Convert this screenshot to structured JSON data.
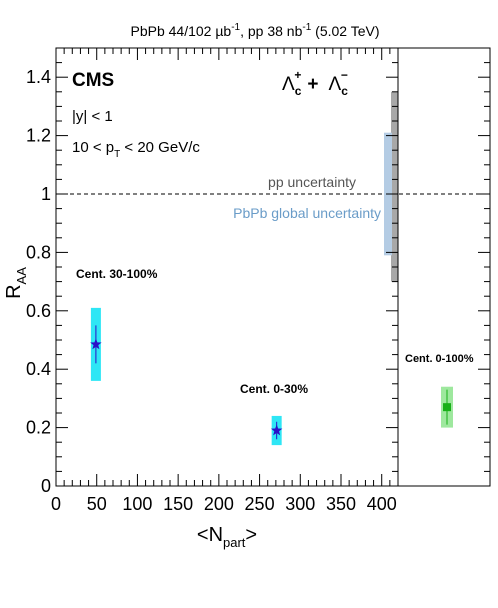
{
  "header": {
    "lumi_pre": "PbPb 44/102 µb",
    "lumi_sup1": "-1",
    "lumi_mid": ", pp 38 nb",
    "lumi_sup2": "-1",
    "lumi_post": " (5.02 TeV)"
  },
  "labels": {
    "cms": "CMS",
    "rapidity": "|y| < 1",
    "pt_pre": "10 < p",
    "pt_sub": "T",
    "pt_post": " < 20 GeV/c",
    "species_a": "Λ",
    "species_a_sub": "c",
    "species_a_sup": "+",
    "species_plus": "+",
    "species_b": "Λ",
    "species_b_sub": "c",
    "species_b_sup": "−",
    "pp_unc": "pp uncertainty",
    "pbpb_unc": "PbPb global uncertainty",
    "cent_30_100": "Cent. 30-100%",
    "cent_0_30": "Cent. 0-30%",
    "cent_0_100": "Cent. 0-100%",
    "ylabel_main": "R",
    "ylabel_sub": "AA",
    "xlabel_pre": "<N",
    "xlabel_sub": "part",
    "xlabel_post": ">"
  },
  "colors": {
    "central_marker": "#2a10c8",
    "central_box": "#2ee6f5",
    "inclusive_marker": "#18b018",
    "inclusive_box": "#9ee89e",
    "pp_band": "#a8a8a8",
    "pbpb_band": "#b4cce4",
    "pbpb_text": "#6a9cc8",
    "pp_text": "#555555"
  },
  "chart_data": {
    "type": "scatter",
    "xlim": [
      0,
      420
    ],
    "ylim": [
      0,
      1.5
    ],
    "x_ticks": [
      "0",
      "50",
      "100",
      "150",
      "200",
      "250",
      "300",
      "350",
      "400"
    ],
    "y_ticks": [
      "0",
      "0.2",
      "0.4",
      "0.6",
      "0.8",
      "1",
      "1.2",
      "1.4"
    ],
    "reference_line": 1.0,
    "series": [
      {
        "points": [
          {
            "x": 49,
            "y": 0.485,
            "stat_lo": 0.42,
            "stat_hi": 0.55,
            "syst_lo": 0.36,
            "syst_hi": 0.61
          },
          {
            "x": 271,
            "y": 0.19,
            "stat_lo": 0.16,
            "stat_hi": 0.22,
            "syst_lo": 0.14,
            "syst_hi": 0.24
          }
        ]
      }
    ],
    "inclusive": {
      "y": 0.27,
      "stat_lo": 0.21,
      "stat_hi": 0.33,
      "syst_lo": 0.2,
      "syst_hi": 0.34
    },
    "global_uncertainties": [
      {
        "y_lo": 0.7,
        "y_hi": 1.35
      },
      {
        "y_lo": 0.79,
        "y_hi": 1.21
      }
    ]
  }
}
